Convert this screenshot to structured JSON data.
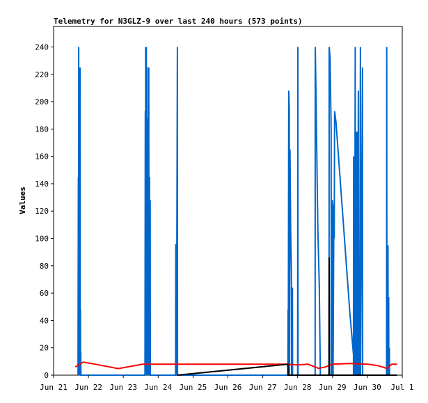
{
  "chart_data": {
    "type": "line",
    "title": "Telemetry for N3GLZ-9 over last 240 hours (573 points)",
    "ylabel": "Values",
    "xlabel": "",
    "xlim": [
      0,
      10
    ],
    "ylim": [
      0,
      255
    ],
    "x_tick_labels": [
      {
        "x": 0,
        "label": "Jun 21"
      },
      {
        "x": 1,
        "label": "Jun 22"
      },
      {
        "x": 2,
        "label": "Jun 23"
      },
      {
        "x": 3,
        "label": "Jun 24"
      },
      {
        "x": 4,
        "label": "Jun 25"
      },
      {
        "x": 5,
        "label": "Jun 26"
      },
      {
        "x": 6,
        "label": "Jun 27"
      },
      {
        "x": 7,
        "label": "Jun 28"
      },
      {
        "x": 8,
        "label": "Jun 29"
      },
      {
        "x": 9,
        "label": "Jun 30"
      },
      {
        "x": 10,
        "label": "Jul 1"
      }
    ],
    "y_ticks": [
      0,
      20,
      40,
      60,
      80,
      100,
      120,
      140,
      160,
      180,
      200,
      220,
      240
    ],
    "grid": false,
    "series": [
      {
        "color": "#0066cc",
        "points": [
          [
            0.7,
            0
          ],
          [
            0.71,
            145
          ],
          [
            0.715,
            0
          ],
          [
            0.72,
            240
          ],
          [
            0.725,
            0
          ],
          [
            0.73,
            208
          ],
          [
            0.735,
            0
          ],
          [
            0.76,
            225
          ],
          [
            0.765,
            0
          ],
          [
            0.77,
            48
          ],
          [
            0.775,
            0
          ],
          [
            0.78,
            17
          ],
          [
            0.785,
            0
          ],
          [
            2.62,
            0
          ],
          [
            2.63,
            193
          ],
          [
            2.635,
            0
          ],
          [
            2.64,
            240
          ],
          [
            2.645,
            0
          ],
          [
            2.66,
            240
          ],
          [
            2.665,
            0
          ],
          [
            2.67,
            188
          ],
          [
            2.675,
            0
          ],
          [
            2.68,
            175
          ],
          [
            2.685,
            0
          ],
          [
            2.7,
            160
          ],
          [
            2.705,
            0
          ],
          [
            2.71,
            225
          ],
          [
            2.715,
            0
          ],
          [
            2.73,
            225
          ],
          [
            2.735,
            0
          ],
          [
            2.75,
            145
          ],
          [
            2.755,
            0
          ],
          [
            2.77,
            128
          ],
          [
            2.775,
            0
          ],
          [
            3.5,
            0
          ],
          [
            3.505,
            96
          ],
          [
            3.52,
            70
          ],
          [
            3.525,
            0
          ],
          [
            3.55,
            240
          ],
          [
            3.555,
            0
          ],
          [
            6.72,
            0
          ],
          [
            6.725,
            48
          ],
          [
            6.73,
            0
          ],
          [
            6.745,
            208
          ],
          [
            6.76,
            193
          ],
          [
            6.765,
            0
          ],
          [
            6.78,
            165
          ],
          [
            6.8,
            105
          ],
          [
            6.82,
            75
          ],
          [
            6.825,
            0
          ],
          [
            6.85,
            64
          ],
          [
            6.855,
            0
          ],
          [
            7.0,
            0
          ],
          [
            7.005,
            240
          ],
          [
            7.01,
            0
          ],
          [
            7.5,
            0
          ],
          [
            7.505,
            240
          ],
          [
            7.52,
            215
          ],
          [
            7.55,
            158
          ],
          [
            7.58,
            105
          ],
          [
            7.62,
            65
          ],
          [
            7.65,
            0
          ],
          [
            7.9,
            0
          ],
          [
            7.905,
            240
          ],
          [
            7.93,
            232
          ],
          [
            7.96,
            180
          ],
          [
            7.965,
            0
          ],
          [
            7.98,
            32
          ],
          [
            7.985,
            0
          ],
          [
            8.0,
            128
          ],
          [
            8.01,
            85
          ],
          [
            8.015,
            0
          ],
          [
            8.04,
            125
          ],
          [
            8.05,
            100
          ],
          [
            8.06,
            193
          ],
          [
            8.1,
            185
          ],
          [
            8.2,
            150
          ],
          [
            8.3,
            115
          ],
          [
            8.4,
            80
          ],
          [
            8.5,
            45
          ],
          [
            8.6,
            15
          ],
          [
            8.62,
            0
          ],
          [
            8.6,
            0
          ],
          [
            8.605,
            160
          ],
          [
            8.61,
            0
          ],
          [
            8.63,
            112
          ],
          [
            8.635,
            0
          ],
          [
            8.65,
            240
          ],
          [
            8.66,
            0
          ],
          [
            8.67,
            95
          ],
          [
            8.675,
            0
          ],
          [
            8.69,
            178
          ],
          [
            8.695,
            0
          ],
          [
            8.72,
            178
          ],
          [
            8.725,
            0
          ],
          [
            8.74,
            208
          ],
          [
            8.745,
            0
          ],
          [
            8.77,
            48
          ],
          [
            8.775,
            0
          ],
          [
            8.8,
            240
          ],
          [
            8.805,
            0
          ],
          [
            8.86,
            225
          ],
          [
            8.865,
            0
          ],
          [
            9.55,
            0
          ],
          [
            9.555,
            240
          ],
          [
            9.56,
            0
          ],
          [
            9.59,
            95
          ],
          [
            9.595,
            0
          ],
          [
            9.61,
            57
          ],
          [
            9.615,
            0
          ],
          [
            9.63,
            20
          ],
          [
            9.635,
            0
          ]
        ]
      },
      {
        "color": "#ff0000",
        "points": [
          [
            0.62,
            6
          ],
          [
            0.85,
            9.5
          ],
          [
            1.2,
            8
          ],
          [
            1.5,
            6.5
          ],
          [
            1.85,
            4.8
          ],
          [
            2.55,
            8
          ],
          [
            3.0,
            8
          ],
          [
            3.5,
            8
          ],
          [
            4.0,
            8
          ],
          [
            5.0,
            8
          ],
          [
            6.0,
            8
          ],
          [
            6.7,
            8
          ],
          [
            7.0,
            7.5
          ],
          [
            7.3,
            8
          ],
          [
            7.6,
            5
          ],
          [
            7.8,
            6
          ],
          [
            8.0,
            8
          ],
          [
            8.5,
            8.5
          ],
          [
            9.0,
            8
          ],
          [
            9.3,
            7
          ],
          [
            9.55,
            5
          ],
          [
            9.7,
            8
          ],
          [
            9.85,
            8
          ]
        ]
      },
      {
        "color": "#000000",
        "points": [
          [
            3.55,
            0
          ],
          [
            6.72,
            8
          ],
          [
            6.725,
            0
          ],
          [
            7.9,
            0
          ],
          [
            7.905,
            86
          ],
          [
            7.91,
            0
          ],
          [
            7.97,
            0
          ],
          [
            8.5,
            0
          ],
          [
            9.85,
            0
          ]
        ]
      }
    ]
  }
}
